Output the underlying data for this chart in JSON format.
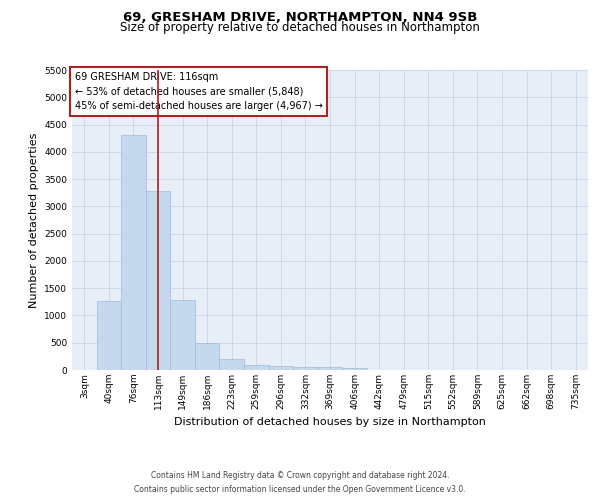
{
  "title1": "69, GRESHAM DRIVE, NORTHAMPTON, NN4 9SB",
  "title2": "Size of property relative to detached houses in Northampton",
  "xlabel": "Distribution of detached houses by size in Northampton",
  "ylabel": "Number of detached properties",
  "categories": [
    "3sqm",
    "40sqm",
    "76sqm",
    "113sqm",
    "149sqm",
    "186sqm",
    "223sqm",
    "259sqm",
    "296sqm",
    "332sqm",
    "369sqm",
    "406sqm",
    "442sqm",
    "479sqm",
    "515sqm",
    "552sqm",
    "589sqm",
    "625sqm",
    "662sqm",
    "698sqm",
    "735sqm"
  ],
  "values": [
    0,
    1260,
    4300,
    3290,
    1280,
    490,
    200,
    100,
    75,
    50,
    50,
    40,
    0,
    0,
    0,
    0,
    0,
    0,
    0,
    0,
    0
  ],
  "bar_color": "#c5d8ed",
  "bar_edge_color": "#9bbcd8",
  "vline_x_index": 3,
  "vline_color": "#aa2222",
  "annotation_text": "69 GRESHAM DRIVE: 116sqm\n← 53% of detached houses are smaller (5,848)\n45% of semi-detached houses are larger (4,967) →",
  "annotation_box_color": "#ffffff",
  "annotation_box_edge": "#aa2222",
  "ylim": [
    0,
    5500
  ],
  "yticks": [
    0,
    500,
    1000,
    1500,
    2000,
    2500,
    3000,
    3500,
    4000,
    4500,
    5000,
    5500
  ],
  "grid_color": "#c8d4e8",
  "bg_color": "#e8eef8",
  "footer": "Contains HM Land Registry data © Crown copyright and database right 2024.\nContains public sector information licensed under the Open Government Licence v3.0.",
  "title1_fontsize": 9.5,
  "title2_fontsize": 8.5,
  "tick_fontsize": 6.5,
  "ylabel_fontsize": 8,
  "xlabel_fontsize": 8,
  "annotation_fontsize": 7,
  "footer_fontsize": 5.5
}
